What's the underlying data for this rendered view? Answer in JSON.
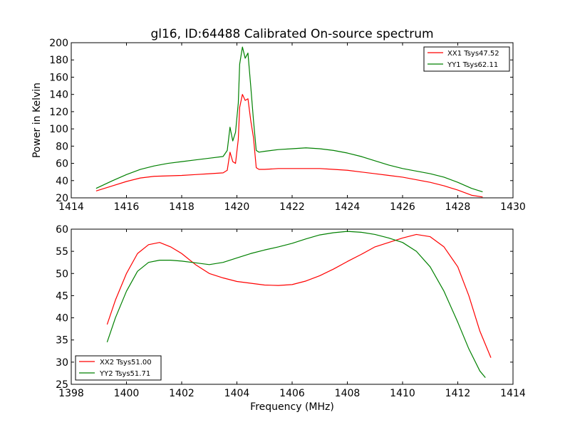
{
  "chart_data": [
    {
      "type": "line",
      "title": "gl16, ID:64488 Calibrated On-source spectrum",
      "xlabel": "",
      "ylabel": "Power in Kelvin",
      "xlim": [
        1414,
        1430
      ],
      "ylim": [
        20,
        200
      ],
      "xticks": [
        1414,
        1416,
        1418,
        1420,
        1422,
        1424,
        1426,
        1428,
        1430
      ],
      "yticks": [
        20,
        40,
        60,
        80,
        100,
        120,
        140,
        160,
        180,
        200
      ],
      "legend_position": "top-right",
      "grid": false,
      "series": [
        {
          "name": "XX1 Tsys47.52",
          "color": "#ff0000",
          "x": [
            1414.9,
            1415.5,
            1416.0,
            1416.5,
            1417.0,
            1417.5,
            1418.0,
            1418.5,
            1419.0,
            1419.5,
            1419.65,
            1419.75,
            1419.85,
            1419.95,
            1420.05,
            1420.1,
            1420.2,
            1420.3,
            1420.4,
            1420.5,
            1420.6,
            1420.7,
            1420.8,
            1421.0,
            1421.5,
            1422.0,
            1422.5,
            1423.0,
            1423.5,
            1424.0,
            1424.5,
            1425.0,
            1425.5,
            1426.0,
            1426.5,
            1427.0,
            1427.5,
            1428.0,
            1428.5,
            1428.9
          ],
          "y": [
            28,
            34,
            39,
            43,
            45,
            45.5,
            46,
            47,
            48,
            49,
            52,
            73,
            62,
            60,
            88,
            125,
            140,
            133,
            135,
            110,
            90,
            55,
            53,
            53,
            54,
            54,
            54,
            54,
            53,
            52,
            50,
            48,
            46,
            44,
            41,
            38,
            34,
            29,
            23,
            21
          ]
        },
        {
          "name": "YY1 Tsys62.11",
          "color": "#008000",
          "x": [
            1414.9,
            1415.5,
            1416.0,
            1416.5,
            1417.0,
            1417.5,
            1418.0,
            1418.5,
            1419.0,
            1419.5,
            1419.65,
            1419.75,
            1419.85,
            1419.95,
            1420.05,
            1420.1,
            1420.2,
            1420.3,
            1420.4,
            1420.5,
            1420.6,
            1420.7,
            1420.8,
            1421.0,
            1421.5,
            1422.0,
            1422.5,
            1423.0,
            1423.5,
            1424.0,
            1424.5,
            1425.0,
            1425.5,
            1426.0,
            1426.5,
            1427.0,
            1427.5,
            1428.0,
            1428.5,
            1428.9
          ],
          "y": [
            31,
            40,
            47,
            53,
            57,
            60,
            62,
            64,
            66,
            68,
            75,
            102,
            86,
            96,
            130,
            175,
            195,
            182,
            188,
            150,
            110,
            75,
            73,
            74,
            76,
            77,
            78,
            77,
            75,
            72,
            68,
            63,
            58,
            54,
            51,
            48,
            44,
            38,
            31,
            27
          ]
        }
      ]
    },
    {
      "type": "line",
      "title": "",
      "xlabel": "Frequency (MHz)",
      "ylabel": "",
      "xlim": [
        1398,
        1414
      ],
      "ylim": [
        25,
        60
      ],
      "xticks": [
        1398,
        1400,
        1402,
        1404,
        1406,
        1408,
        1410,
        1412,
        1414
      ],
      "yticks": [
        25,
        30,
        35,
        40,
        45,
        50,
        55,
        60
      ],
      "legend_position": "bottom-left",
      "grid": false,
      "series": [
        {
          "name": "XX2 Tsys51.00",
          "color": "#ff0000",
          "x": [
            1399.3,
            1399.6,
            1400.0,
            1400.4,
            1400.8,
            1401.2,
            1401.6,
            1402.0,
            1402.5,
            1403.0,
            1403.5,
            1404.0,
            1404.5,
            1405.0,
            1405.5,
            1406.0,
            1406.5,
            1407.0,
            1407.5,
            1408.0,
            1408.5,
            1409.0,
            1409.5,
            1410.0,
            1410.5,
            1411.0,
            1411.5,
            1412.0,
            1412.4,
            1412.8,
            1413.2
          ],
          "y": [
            38.5,
            44,
            50,
            54.5,
            56.5,
            57,
            56,
            54.5,
            52,
            50,
            49,
            48.2,
            47.8,
            47.4,
            47.3,
            47.5,
            48.3,
            49.5,
            51,
            52.7,
            54.3,
            56,
            57,
            58,
            58.8,
            58.3,
            56,
            51.5,
            45,
            37,
            31
          ]
        },
        {
          "name": "YY2 Tsys51.71",
          "color": "#008000",
          "x": [
            1399.3,
            1399.6,
            1400.0,
            1400.4,
            1400.8,
            1401.2,
            1401.6,
            1402.0,
            1402.5,
            1403.0,
            1403.5,
            1404.0,
            1404.5,
            1405.0,
            1405.5,
            1406.0,
            1406.5,
            1407.0,
            1407.5,
            1408.0,
            1408.5,
            1409.0,
            1409.5,
            1410.0,
            1410.5,
            1411.0,
            1411.5,
            1412.0,
            1412.4,
            1412.8,
            1413.0
          ],
          "y": [
            34.5,
            40,
            46,
            50.5,
            52.5,
            53,
            53,
            52.8,
            52.4,
            52,
            52.5,
            53.5,
            54.5,
            55.3,
            56,
            56.8,
            57.8,
            58.7,
            59.2,
            59.5,
            59.3,
            58.8,
            58,
            57,
            55,
            51.5,
            46,
            39,
            33,
            28,
            26.5
          ]
        }
      ]
    }
  ]
}
